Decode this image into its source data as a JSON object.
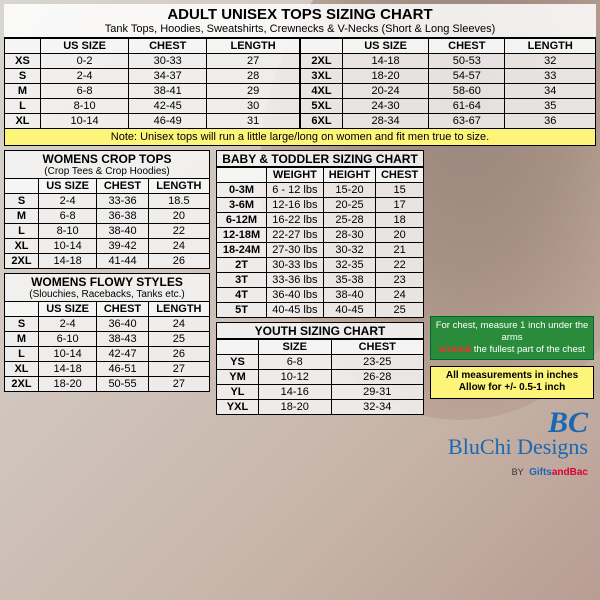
{
  "main": {
    "title": "ADULT UNISEX TOPS SIZING CHART",
    "subtitle": "Tank Tops, Hoodies, Sweatshirts, Crewnecks & V-Necks (Short & Long Sleeves)"
  },
  "adult": {
    "headers": [
      "US SIZE",
      "CHEST",
      "LENGTH"
    ],
    "left": [
      [
        "XS",
        "0-2",
        "30-33",
        "27"
      ],
      [
        "S",
        "2-4",
        "34-37",
        "28"
      ],
      [
        "M",
        "6-8",
        "38-41",
        "29"
      ],
      [
        "L",
        "8-10",
        "42-45",
        "30"
      ],
      [
        "XL",
        "10-14",
        "46-49",
        "31"
      ]
    ],
    "right": [
      [
        "2XL",
        "14-18",
        "50-53",
        "32"
      ],
      [
        "3XL",
        "18-20",
        "54-57",
        "33"
      ],
      [
        "4XL",
        "20-24",
        "58-60",
        "34"
      ],
      [
        "5XL",
        "24-30",
        "61-64",
        "35"
      ],
      [
        "6XL",
        "28-34",
        "63-67",
        "36"
      ]
    ]
  },
  "note": "Note: Unisex tops will run a little large/long on women and fit men true to size.",
  "crop": {
    "title": "WOMENS CROP TOPS",
    "sub": "(Crop Tees & Crop Hoodies)",
    "headers": [
      "US SIZE",
      "CHEST",
      "LENGTH"
    ],
    "rows": [
      [
        "S",
        "2-4",
        "33-36",
        "18.5"
      ],
      [
        "M",
        "6-8",
        "36-38",
        "20"
      ],
      [
        "L",
        "8-10",
        "38-40",
        "22"
      ],
      [
        "XL",
        "10-14",
        "39-42",
        "24"
      ],
      [
        "2XL",
        "14-18",
        "41-44",
        "26"
      ]
    ]
  },
  "flowy": {
    "title": "WOMENS FLOWY STYLES",
    "sub": "(Slouchies, Racebacks, Tanks etc.)",
    "headers": [
      "US SIZE",
      "CHEST",
      "LENGTH"
    ],
    "rows": [
      [
        "S",
        "2-4",
        "36-40",
        "24"
      ],
      [
        "M",
        "6-10",
        "38-43",
        "25"
      ],
      [
        "L",
        "10-14",
        "42-47",
        "26"
      ],
      [
        "XL",
        "14-18",
        "46-51",
        "27"
      ],
      [
        "2XL",
        "18-20",
        "50-55",
        "27"
      ]
    ]
  },
  "baby": {
    "title": "BABY & TODDLER SIZING CHART",
    "headers": [
      "WEIGHT",
      "HEIGHT",
      "CHEST"
    ],
    "rows": [
      [
        "0-3M",
        "6 - 12 lbs",
        "15-20",
        "15"
      ],
      [
        "3-6M",
        "12-16 lbs",
        "20-25",
        "17"
      ],
      [
        "6-12M",
        "16-22 lbs",
        "25-28",
        "18"
      ],
      [
        "12-18M",
        "22-27 lbs",
        "28-30",
        "20"
      ],
      [
        "18-24M",
        "27-30 lbs",
        "30-32",
        "21"
      ],
      [
        "2T",
        "30-33 lbs",
        "32-35",
        "22"
      ],
      [
        "3T",
        "33-36 lbs",
        "35-38",
        "23"
      ],
      [
        "4T",
        "36-40 lbs",
        "38-40",
        "24"
      ],
      [
        "5T",
        "40-45 lbs",
        "40-45",
        "25"
      ]
    ]
  },
  "youth": {
    "title": "YOUTH SIZING CHART",
    "headers": [
      "SIZE",
      "CHEST"
    ],
    "rows": [
      [
        "YS",
        "6-8",
        "23-25"
      ],
      [
        "YM",
        "10-12",
        "26-28"
      ],
      [
        "YL",
        "14-16",
        "29-31"
      ],
      [
        "YXL",
        "18-20",
        "32-34"
      ]
    ]
  },
  "tips": {
    "green1": "For chest, measure 1 inch under the arms",
    "green_ar": "around",
    "green2": " the fullest part of the chest",
    "yellow1": "All measurements in inches",
    "yellow2": "Allow for +/- 0.5-1 inch"
  },
  "logo": {
    "bc": "BC",
    "name": "BluChi Designs",
    "by": "BY",
    "brand1": "Gifts",
    "brand2": "andBac"
  },
  "colors": {
    "yellow": "#fdf57a",
    "green": "#2a8c3b",
    "blue": "#1a68b3",
    "table_bg": "rgba(245,245,245,0.82)",
    "border": "#000000"
  }
}
